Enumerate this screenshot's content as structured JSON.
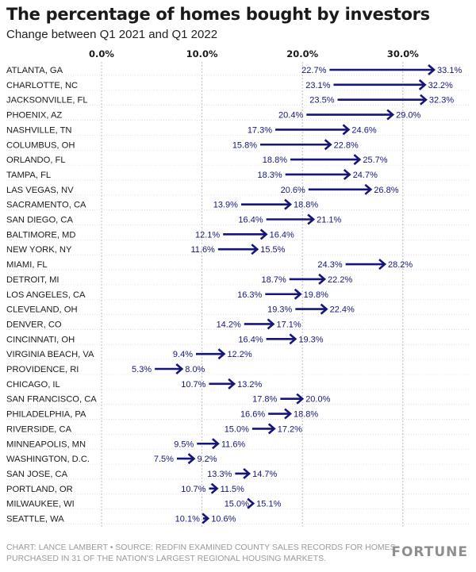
{
  "title": "The percentage of homes bought by investors",
  "subtitle": "Change between Q1 2021 and Q1 2022",
  "footer": "CHART: LANCE LAMBERT • SOURCE: REDFIN EXAMINED COUNTY SALES RECORDS FOR HOMES PURCHASED IN 31 OF THE NATION'S LARGEST REGIONAL HOUSING MARKETS.",
  "brand": "FORTUNE",
  "colors": {
    "increase": "#15157a",
    "decrease": "#e8892f",
    "grid": "#bdbdbd",
    "text": "#1a1a1a"
  },
  "chart_data": {
    "type": "arrow",
    "title": "The percentage of homes bought by investors",
    "subtitle": "Change between Q1 2021 and Q1 2022",
    "xlim": [
      0,
      35
    ],
    "ticks": [
      0,
      10,
      20,
      30
    ],
    "tick_labels": [
      "0.0%",
      "10.0%",
      "20.0%",
      "30.0%"
    ],
    "grid": true,
    "series": [
      {
        "name": "Q1 2021"
      },
      {
        "name": "Q1 2022"
      }
    ],
    "rows": [
      {
        "city": "ATLANTA, GA",
        "start": 22.7,
        "end": 33.1
      },
      {
        "city": "CHARLOTTE, NC",
        "start": 23.1,
        "end": 32.2
      },
      {
        "city": "JACKSONVILLE, FL",
        "start": 23.5,
        "end": 32.3
      },
      {
        "city": "PHOENIX, AZ",
        "start": 20.4,
        "end": 29.0
      },
      {
        "city": "NASHVILLE, TN",
        "start": 17.3,
        "end": 24.6
      },
      {
        "city": "COLUMBUS, OH",
        "start": 15.8,
        "end": 22.8
      },
      {
        "city": "ORLANDO, FL",
        "start": 18.8,
        "end": 25.7
      },
      {
        "city": "TAMPA, FL",
        "start": 18.3,
        "end": 24.7
      },
      {
        "city": "LAS VEGAS, NV",
        "start": 20.6,
        "end": 26.8
      },
      {
        "city": "SACRAMENTO, CA",
        "start": 13.9,
        "end": 18.8
      },
      {
        "city": "SAN DIEGO, CA",
        "start": 16.4,
        "end": 21.1
      },
      {
        "city": "BALTIMORE, MD",
        "start": 12.1,
        "end": 16.4
      },
      {
        "city": "NEW YORK, NY",
        "start": 11.6,
        "end": 15.5
      },
      {
        "city": "MIAMI, FL",
        "start": 24.3,
        "end": 28.2
      },
      {
        "city": "DETROIT, MI",
        "start": 18.7,
        "end": 22.2
      },
      {
        "city": "LOS ANGELES, CA",
        "start": 16.3,
        "end": 19.8
      },
      {
        "city": "CLEVELAND, OH",
        "start": 19.3,
        "end": 22.4
      },
      {
        "city": "DENVER, CO",
        "start": 14.2,
        "end": 17.1
      },
      {
        "city": "CINCINNATI, OH",
        "start": 16.4,
        "end": 19.3
      },
      {
        "city": "VIRGINIA BEACH, VA",
        "start": 9.4,
        "end": 12.2
      },
      {
        "city": "PROVIDENCE, RI",
        "start": 5.3,
        "end": 8.0
      },
      {
        "city": "CHICAGO, IL",
        "start": 10.7,
        "end": 13.2
      },
      {
        "city": "SAN FRANCISCO, CA",
        "start": 17.8,
        "end": 20.0
      },
      {
        "city": "PHILADELPHIA, PA",
        "start": 16.6,
        "end": 18.8
      },
      {
        "city": "RIVERSIDE, CA",
        "start": 15.0,
        "end": 17.2
      },
      {
        "city": "MINNEAPOLIS, MN",
        "start": 9.5,
        "end": 11.6
      },
      {
        "city": "WASHINGTON, D.C.",
        "start": 7.5,
        "end": 9.2
      },
      {
        "city": "SAN JOSE, CA",
        "start": 13.3,
        "end": 14.7
      },
      {
        "city": "PORTLAND, OR",
        "start": 10.7,
        "end": 11.5
      },
      {
        "city": "MILWAUKEE, WI",
        "start": 15.0,
        "end": 15.1
      },
      {
        "city": "SEATTLE, WA",
        "start": 10.1,
        "end": 10.6
      }
    ]
  }
}
